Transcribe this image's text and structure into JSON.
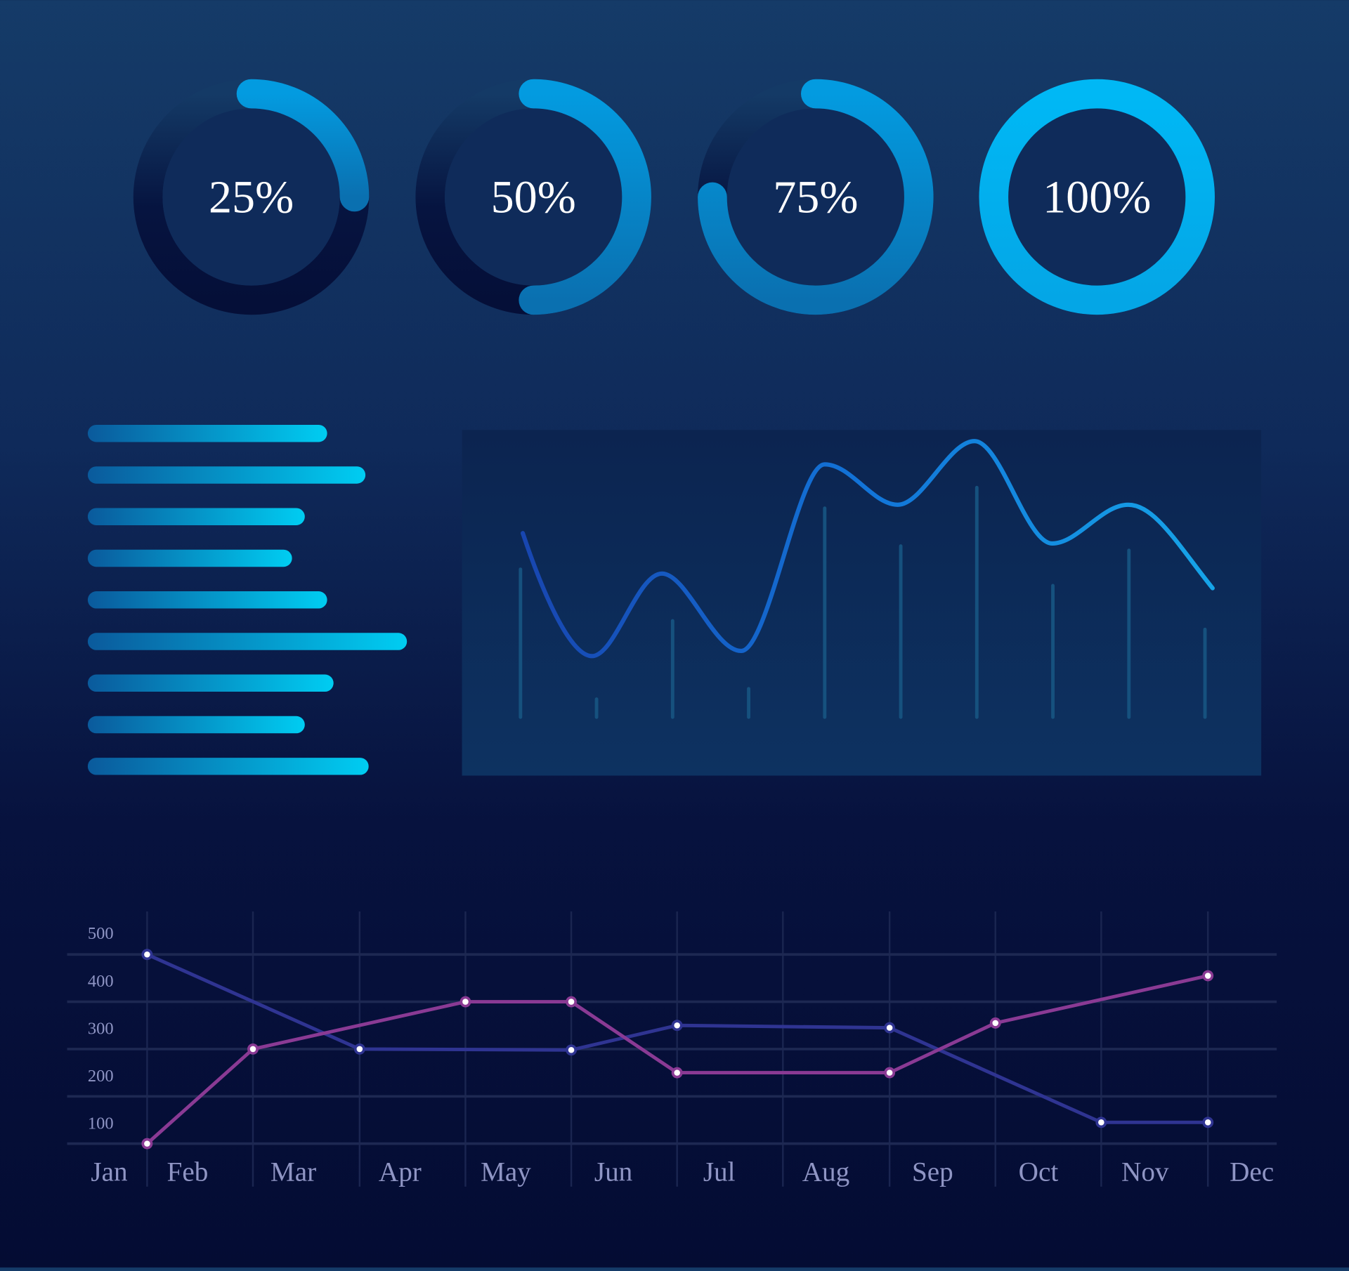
{
  "colors": {
    "accent": "#00b6f0",
    "accent_dark": "#0a5f9e",
    "track": "#061440",
    "series_blue": "#2f3492",
    "series_purple": "#8a3a94",
    "grid": "#1d2852",
    "axis_text": "#8f95c4"
  },
  "chart_data": [
    {
      "type": "pie",
      "subtype": "donut-progress",
      "items": [
        {
          "label": "25%",
          "value": 25
        },
        {
          "label": "50%",
          "value": 50
        },
        {
          "label": "75%",
          "value": 75
        },
        {
          "label": "100%",
          "value": 100
        }
      ]
    },
    {
      "type": "bar",
      "orientation": "horizontal",
      "title": "",
      "values": [
        0.75,
        0.87,
        0.68,
        0.64,
        0.75,
        1.0,
        0.77,
        0.68,
        0.88
      ],
      "xlim": [
        0,
        1
      ]
    },
    {
      "type": "line",
      "subtype": "smooth-line-with-bars",
      "bars": [
        172,
        21,
        112,
        33,
        243,
        199,
        267,
        153,
        194,
        102
      ],
      "curve": [
        {
          "x": 0.03,
          "y": 214
        },
        {
          "x": 0.94,
          "y": 71
        },
        {
          "x": 1.86,
          "y": 167
        },
        {
          "x": 2.9,
          "y": 77
        },
        {
          "x": 4.0,
          "y": 294
        },
        {
          "x": 4.96,
          "y": 247
        },
        {
          "x": 5.97,
          "y": 321
        },
        {
          "x": 6.99,
          "y": 202
        },
        {
          "x": 7.99,
          "y": 247
        },
        {
          "x": 9.1,
          "y": 150
        }
      ],
      "ylim": [
        0,
        340
      ]
    },
    {
      "type": "line",
      "title": "",
      "xlabel": "",
      "ylabel": "",
      "categories": [
        "Jan",
        "Feb",
        "Mar",
        "Apr",
        "May",
        "Jun",
        "Jul",
        "Aug",
        "Sep",
        "Oct",
        "Nov",
        "Dec"
      ],
      "y_ticks": [
        "500",
        "400",
        "300",
        "200",
        "100"
      ],
      "ylim": [
        100,
        500
      ],
      "grid": true,
      "series": [
        {
          "name": "blue",
          "points": [
            [
              0,
              500
            ],
            [
              2,
              300
            ],
            [
              4,
              298
            ],
            [
              5,
              350
            ],
            [
              7,
              345
            ],
            [
              9,
              145
            ],
            [
              10,
              145
            ]
          ]
        },
        {
          "name": "purple",
          "points": [
            [
              0,
              100
            ],
            [
              1,
              300
            ],
            [
              3,
              400
            ],
            [
              4,
              400
            ],
            [
              5,
              250
            ],
            [
              7,
              250
            ],
            [
              8,
              355
            ],
            [
              10,
              455
            ]
          ]
        }
      ]
    }
  ]
}
